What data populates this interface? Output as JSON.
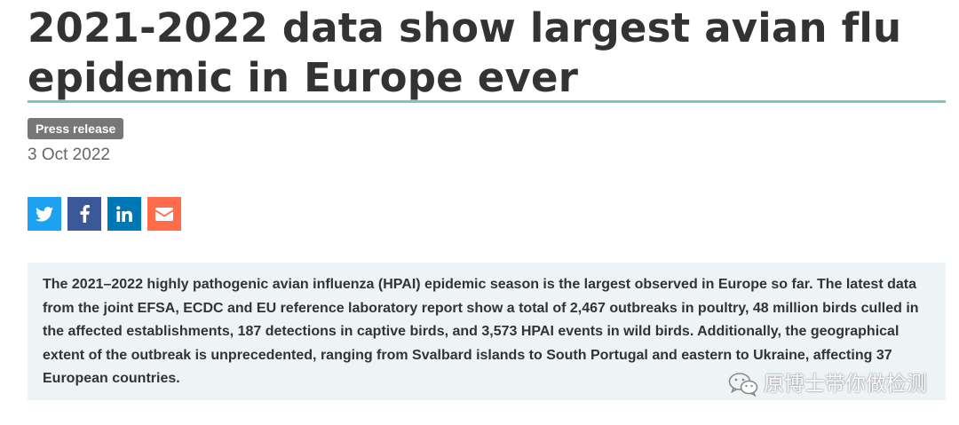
{
  "article": {
    "title": "2021-2022 data show largest avian flu epidemic in Europe ever",
    "type_badge": "Press release",
    "date": "3 Oct 2022"
  },
  "share": {
    "buttons": [
      {
        "icon": "twitter-icon",
        "color": "#1da1f2"
      },
      {
        "icon": "facebook-icon",
        "color": "#3b5998"
      },
      {
        "icon": "linkedin-icon",
        "color": "#0077b5"
      },
      {
        "icon": "email-icon",
        "color": "#ff6c4c"
      }
    ]
  },
  "intro": {
    "text": "The 2021–2022 highly pathogenic avian influenza (HPAI) epidemic season is the largest observed in Europe so far. The latest data from the joint EFSA, ECDC and EU reference laboratory report show a total of 2,467 outbreaks in poultry, 48 million birds culled in the affected establishments, 187 detections in captive birds, and 3,573 HPAI events in wild birds. Additionally, the geographical extent of the outbreak is unprecedented, ranging from Svalbard islands to South Portugal and eastern to Ukraine, affecting 37 European countries."
  },
  "watermark": {
    "icon": "wechat-icon",
    "text": "原博士带你做检测"
  },
  "colors": {
    "accent_rule": "#7ec5be",
    "badge_bg": "#777777",
    "intro_bg": "#eef3f5",
    "heading_text": "#333333"
  }
}
